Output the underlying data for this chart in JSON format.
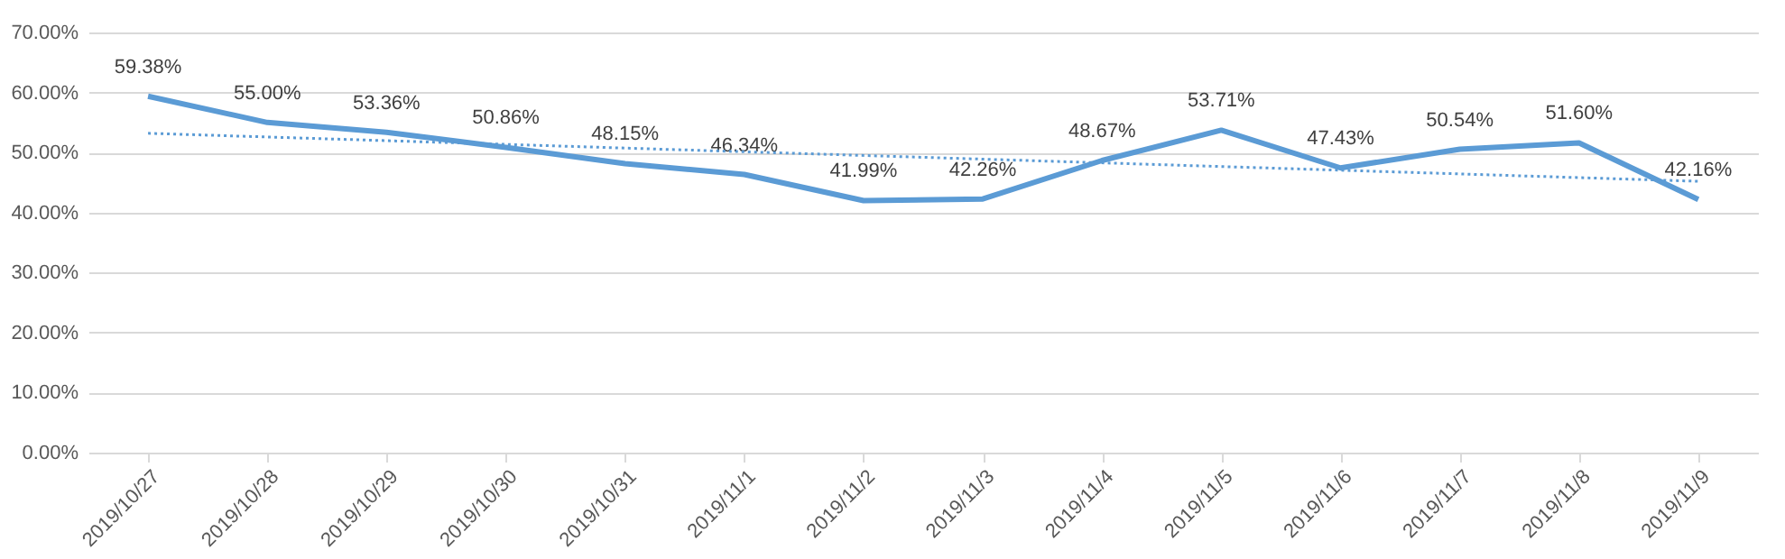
{
  "chart_data": {
    "type": "line",
    "categories": [
      "2019/10/27",
      "2019/10/28",
      "2019/10/29",
      "2019/10/30",
      "2019/10/31",
      "2019/11/1",
      "2019/11/2",
      "2019/11/3",
      "2019/11/4",
      "2019/11/5",
      "2019/11/6",
      "2019/11/7",
      "2019/11/8",
      "2019/11/9"
    ],
    "series": [
      {
        "color": "#5b9bd5",
        "line_style": "solid",
        "values": [
          59.38,
          55.0,
          53.36,
          50.86,
          48.15,
          46.34,
          41.99,
          42.26,
          48.67,
          53.71,
          47.43,
          50.54,
          51.6,
          42.16
        ],
        "value_labels": [
          "59.38%",
          "55.00%",
          "53.36%",
          "50.86%",
          "48.15%",
          "46.34%",
          "41.99%",
          "42.26%",
          "48.67%",
          "53.71%",
          "47.43%",
          "50.54%",
          "51.60%",
          "42.16%"
        ]
      },
      {
        "type": "line",
        "color": "#5b9bd5",
        "line_style": "dotted",
        "x": [
          "2019/10/27",
          "2019/11/9"
        ],
        "values": [
          53.2,
          45.2
        ]
      }
    ],
    "ylim": [
      0,
      70
    ],
    "yticks": [
      {
        "value": 0,
        "label": "0.00%"
      },
      {
        "value": 10,
        "label": "10.00%"
      },
      {
        "value": 20,
        "label": "20.00%"
      },
      {
        "value": 30,
        "label": "30.00%"
      },
      {
        "value": 40,
        "label": "40.00%"
      },
      {
        "value": 50,
        "label": "50.00%"
      },
      {
        "value": 60,
        "label": "60.00%"
      },
      {
        "value": 70,
        "label": "70.00%"
      }
    ],
    "grid": "y",
    "marker": "none"
  }
}
